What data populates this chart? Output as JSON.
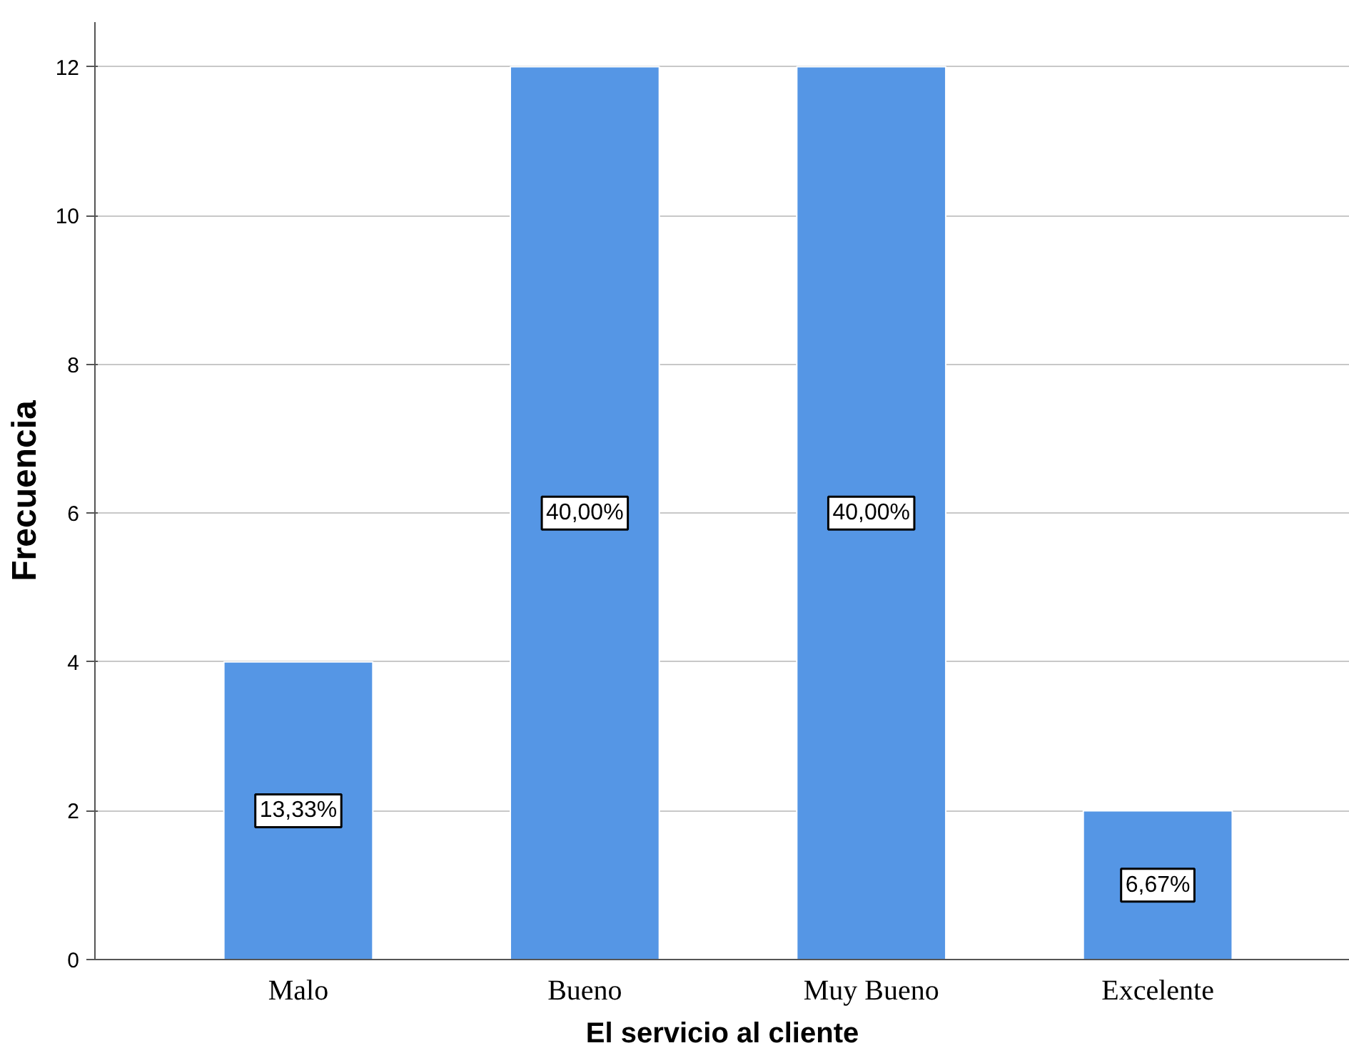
{
  "chart_data": {
    "type": "bar",
    "xlabel": "El servicio al cliente",
    "ylabel": "Frecuencia",
    "categories": [
      "Malo",
      "Bueno",
      "Muy Bueno",
      "Excelente"
    ],
    "values": [
      4,
      12,
      12,
      2
    ],
    "annotations": [
      "13,33%",
      "40,00%",
      "40,00%",
      "6,67%"
    ],
    "color": "#5596e5",
    "ylim": [
      0,
      12.6
    ],
    "yticks": [
      0,
      2,
      4,
      6,
      8,
      10,
      12
    ],
    "grid": "y"
  }
}
